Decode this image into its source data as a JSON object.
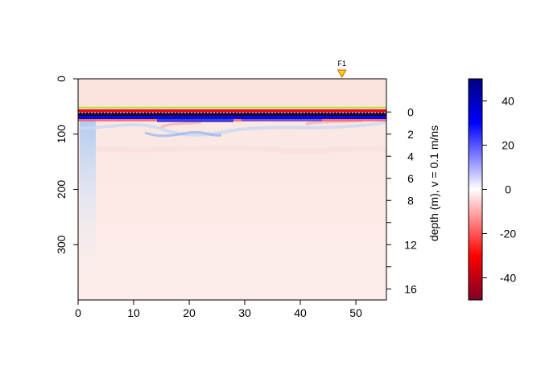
{
  "chart_data": {
    "type": "heatmap",
    "title": "",
    "xlabel": "",
    "ylabel": "",
    "right_axis_label": "depth (m),  v = 0.1 m/ns",
    "xlim": [
      0,
      55.5
    ],
    "ylim": [
      0,
      400
    ],
    "x_ticks": [
      0,
      10,
      20,
      30,
      40,
      50
    ],
    "y_ticks": [
      0,
      100,
      200,
      300
    ],
    "depth_ticks_labeled": [
      0,
      2,
      4,
      6,
      8,
      12,
      16
    ],
    "depth_ticks_all": [
      0,
      2,
      4,
      6,
      8,
      10,
      12,
      14,
      16
    ],
    "depth_scale": {
      "velocity_m_per_ns": 0.1,
      "time_zero_ns": 60
    },
    "marker": {
      "label": "F1",
      "x": 47.5,
      "color": "#FFD700"
    },
    "surface_line": {
      "y": 52,
      "color": "#B8E04A"
    },
    "colorbar": {
      "min": -50,
      "max": 50,
      "ticks": [
        40,
        20,
        0,
        -20,
        -40
      ],
      "colors": [
        "#7F0026",
        "#FF0000",
        "#FFFFFF",
        "#0000FF",
        "#000080"
      ]
    }
  }
}
